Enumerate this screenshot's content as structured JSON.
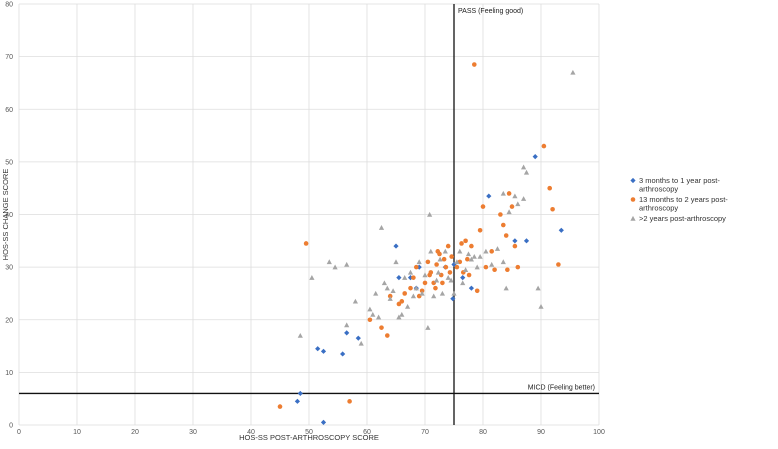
{
  "chart_data": {
    "type": "scatter",
    "xlabel": "HOS-SS POST-ARTHROSCOPY SCORE",
    "ylabel": "HOS-SS  CHANGE SCORE",
    "xlim": [
      0,
      100
    ],
    "ylim": [
      0,
      80
    ],
    "xticks": [
      0,
      10,
      20,
      30,
      40,
      50,
      60,
      70,
      80,
      90,
      100
    ],
    "yticks": [
      0,
      10,
      20,
      30,
      40,
      50,
      60,
      70,
      80
    ],
    "grid": true,
    "legend_position": "right",
    "reference_lines": [
      {
        "orientation": "vertical",
        "value": 75,
        "label": "PASS (Feeling good)"
      },
      {
        "orientation": "horizontal",
        "value": 6,
        "label": "MICD (Feeling better)"
      }
    ],
    "series": [
      {
        "name": "3 months to 1 year post-arthroscopy",
        "legend_lines": [
          "3 months to 1 year post-",
          "arthroscopy"
        ],
        "color": "#3a6fc4",
        "marker": "diamond",
        "points": [
          [
            48,
            4.5
          ],
          [
            48.5,
            6
          ],
          [
            52.5,
            0.5
          ],
          [
            51.5,
            14.5
          ],
          [
            52.5,
            14
          ],
          [
            55.8,
            13.5
          ],
          [
            56.5,
            17.5
          ],
          [
            58.5,
            16.5
          ],
          [
            65,
            34
          ],
          [
            65.5,
            28
          ],
          [
            67.5,
            28
          ],
          [
            68.5,
            26
          ],
          [
            69,
            30
          ],
          [
            73.5,
            30
          ],
          [
            74.8,
            24
          ],
          [
            75,
            30.5
          ],
          [
            76.5,
            28
          ],
          [
            78,
            26
          ],
          [
            81,
            43.5
          ],
          [
            85.5,
            35
          ],
          [
            87.5,
            35
          ],
          [
            89,
            51
          ],
          [
            93.5,
            37
          ]
        ]
      },
      {
        "name": "13 months to 2 years post-arthroscopy",
        "legend_lines": [
          "13 months to 2 years post-",
          "arthroscopy"
        ],
        "color": "#ed7d31",
        "marker": "circle",
        "points": [
          [
            45,
            3.5
          ],
          [
            49.5,
            34.5
          ],
          [
            57,
            4.5
          ],
          [
            60.5,
            20
          ],
          [
            62.5,
            18.5
          ],
          [
            63.5,
            17
          ],
          [
            64,
            24.5
          ],
          [
            65.5,
            23
          ],
          [
            66,
            23.5
          ],
          [
            66.5,
            25
          ],
          [
            67.5,
            26
          ],
          [
            68,
            28
          ],
          [
            68.5,
            30
          ],
          [
            69,
            24.5
          ],
          [
            69.5,
            25.5
          ],
          [
            70,
            27
          ],
          [
            70.5,
            31
          ],
          [
            70.8,
            28.5
          ],
          [
            71,
            29
          ],
          [
            71.5,
            27
          ],
          [
            71.8,
            26
          ],
          [
            72,
            30.5
          ],
          [
            72.2,
            33
          ],
          [
            72.5,
            32.5
          ],
          [
            72.8,
            28.5
          ],
          [
            73,
            27
          ],
          [
            73.3,
            31.5
          ],
          [
            73.6,
            30
          ],
          [
            74,
            34
          ],
          [
            74.3,
            29
          ],
          [
            74.6,
            32
          ],
          [
            75.5,
            30
          ],
          [
            76,
            31
          ],
          [
            76.3,
            34.5
          ],
          [
            76.6,
            29
          ],
          [
            77,
            35
          ],
          [
            77.3,
            31.5
          ],
          [
            77.6,
            28.5
          ],
          [
            78,
            34
          ],
          [
            78.5,
            68.5
          ],
          [
            79,
            25.5
          ],
          [
            79.5,
            37
          ],
          [
            80,
            41.5
          ],
          [
            80.5,
            30
          ],
          [
            81.5,
            33
          ],
          [
            82,
            29.5
          ],
          [
            83,
            40
          ],
          [
            83.5,
            38
          ],
          [
            84,
            36
          ],
          [
            84.2,
            29.5
          ],
          [
            84.5,
            44
          ],
          [
            85,
            41.5
          ],
          [
            85.5,
            34
          ],
          [
            86,
            30
          ],
          [
            90.5,
            53
          ],
          [
            91.5,
            45
          ],
          [
            92,
            41
          ],
          [
            93,
            30.5
          ]
        ]
      },
      {
        "name": ">2 years post-arthroscopy",
        "legend_lines": [
          ">2 years post-arthroscopy"
        ],
        "color": "#a5a5a5",
        "marker": "triangle",
        "points": [
          [
            48.5,
            17
          ],
          [
            50.5,
            28
          ],
          [
            53.5,
            31
          ],
          [
            54.5,
            30
          ],
          [
            56.5,
            19
          ],
          [
            56.5,
            30.5
          ],
          [
            58,
            23.5
          ],
          [
            59,
            15.5
          ],
          [
            60.5,
            22
          ],
          [
            61,
            21
          ],
          [
            61.5,
            25
          ],
          [
            62,
            20.5
          ],
          [
            62.5,
            37.5
          ],
          [
            63,
            27
          ],
          [
            63.5,
            26
          ],
          [
            64,
            24
          ],
          [
            64.5,
            25.5
          ],
          [
            65,
            31
          ],
          [
            65.5,
            20.5
          ],
          [
            66,
            21
          ],
          [
            66.5,
            28
          ],
          [
            67,
            22.5
          ],
          [
            67.5,
            29
          ],
          [
            68,
            24.5
          ],
          [
            68.5,
            26
          ],
          [
            69,
            31
          ],
          [
            69.5,
            25
          ],
          [
            70,
            28.5
          ],
          [
            70.5,
            18.5
          ],
          [
            70.8,
            40
          ],
          [
            71,
            33
          ],
          [
            71.5,
            24.5
          ],
          [
            72,
            27.5
          ],
          [
            72.3,
            29
          ],
          [
            72.6,
            31.5
          ],
          [
            73,
            25
          ],
          [
            73.5,
            33
          ],
          [
            74,
            28
          ],
          [
            74.5,
            27.5
          ],
          [
            75,
            25
          ],
          [
            75.5,
            31
          ],
          [
            76,
            33
          ],
          [
            76.5,
            27
          ],
          [
            77,
            29.5
          ],
          [
            77.5,
            32.5
          ],
          [
            78,
            31.5
          ],
          [
            78.5,
            32
          ],
          [
            79,
            30
          ],
          [
            79.5,
            32
          ],
          [
            80.5,
            33
          ],
          [
            81.5,
            30.5
          ],
          [
            82.5,
            33.5
          ],
          [
            83.5,
            44
          ],
          [
            83.5,
            31
          ],
          [
            84,
            26
          ],
          [
            84.5,
            40.5
          ],
          [
            85.5,
            43.5
          ],
          [
            86,
            42
          ],
          [
            87,
            49
          ],
          [
            87.5,
            48
          ],
          [
            87,
            43
          ],
          [
            89.5,
            26
          ],
          [
            90,
            22.5
          ],
          [
            95.5,
            67
          ]
        ]
      }
    ]
  }
}
